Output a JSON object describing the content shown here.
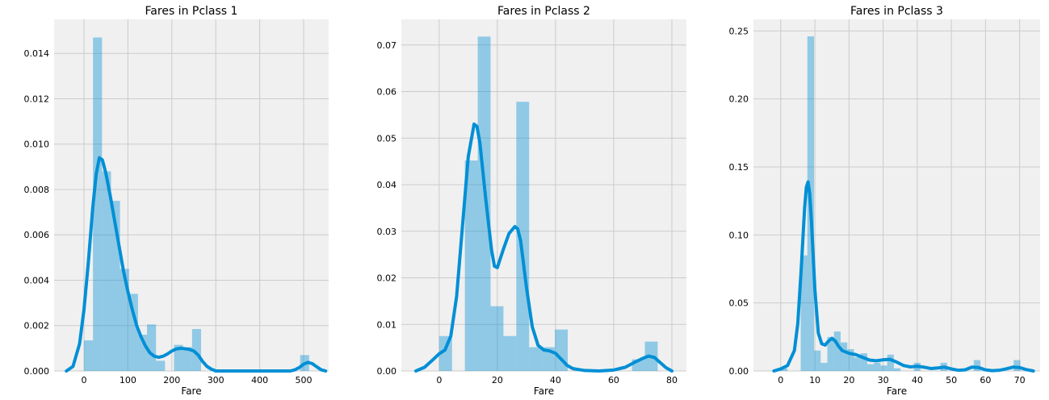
{
  "colors": {
    "background": "#f0f0f0",
    "grid": "#cbcbcb",
    "bar": "#008fd5",
    "bar_alpha": 0.4,
    "kde": "#008fd5"
  },
  "chart_data": [
    {
      "type": "histogram+kde",
      "title": "Fares in Pclass 1",
      "xlabel": "Fare",
      "ylabel": "",
      "xlim": [
        -68,
        557
      ],
      "ylim": [
        0,
        0.0155
      ],
      "xticks": [
        0,
        100,
        200,
        300,
        400,
        500
      ],
      "yticks": [
        0.0,
        0.002,
        0.004,
        0.006,
        0.008,
        0.01,
        0.012,
        0.014
      ],
      "ytick_labels": [
        "0.000",
        "0.002",
        "0.004",
        "0.006",
        "0.008",
        "0.010",
        "0.012",
        "0.014"
      ],
      "grid": true,
      "bins": [
        {
          "x0": 0,
          "x1": 20.5,
          "value": 0.00135
        },
        {
          "x0": 20.5,
          "x1": 41,
          "value": 0.0147
        },
        {
          "x0": 41,
          "x1": 61.5,
          "value": 0.0088
        },
        {
          "x0": 61.5,
          "x1": 82,
          "value": 0.0075
        },
        {
          "x0": 82,
          "x1": 102.5,
          "value": 0.0045
        },
        {
          "x0": 102.5,
          "x1": 123,
          "value": 0.0034
        },
        {
          "x0": 123,
          "x1": 143.5,
          "value": 0.0016
        },
        {
          "x0": 143.5,
          "x1": 164,
          "value": 0.00205
        },
        {
          "x0": 164,
          "x1": 184.5,
          "value": 0.00045
        },
        {
          "x0": 184.5,
          "x1": 205,
          "value": 0.0
        },
        {
          "x0": 205,
          "x1": 225.5,
          "value": 0.00115
        },
        {
          "x0": 225.5,
          "x1": 246,
          "value": 0.00105
        },
        {
          "x0": 246,
          "x1": 266.5,
          "value": 0.00185
        },
        {
          "x0": 492,
          "x1": 512.5,
          "value": 0.0007
        }
      ],
      "kde": [
        [
          -40,
          0.0
        ],
        [
          -25,
          0.0002
        ],
        [
          -10,
          0.0012
        ],
        [
          0,
          0.0027
        ],
        [
          10,
          0.0048
        ],
        [
          20,
          0.0072
        ],
        [
          28,
          0.0087
        ],
        [
          35,
          0.0094
        ],
        [
          42,
          0.0093
        ],
        [
          50,
          0.0087
        ],
        [
          60,
          0.0077
        ],
        [
          70,
          0.0066
        ],
        [
          80,
          0.0055
        ],
        [
          90,
          0.0044
        ],
        [
          100,
          0.0035
        ],
        [
          110,
          0.0027
        ],
        [
          120,
          0.002
        ],
        [
          130,
          0.0015
        ],
        [
          140,
          0.0011
        ],
        [
          150,
          0.0008
        ],
        [
          160,
          0.00065
        ],
        [
          170,
          0.0006
        ],
        [
          180,
          0.00065
        ],
        [
          190,
          0.00075
        ],
        [
          200,
          0.00088
        ],
        [
          210,
          0.00097
        ],
        [
          220,
          0.001
        ],
        [
          230,
          0.00098
        ],
        [
          240,
          0.00095
        ],
        [
          250,
          0.00088
        ],
        [
          260,
          0.0007
        ],
        [
          270,
          0.00042
        ],
        [
          280,
          0.0002
        ],
        [
          290,
          8e-05
        ],
        [
          300,
          0.0
        ],
        [
          470,
          0.0
        ],
        [
          480,
          5e-05
        ],
        [
          490,
          0.00015
        ],
        [
          500,
          0.0003
        ],
        [
          510,
          0.00038
        ],
        [
          520,
          0.00032
        ],
        [
          530,
          0.00018
        ],
        [
          540,
          5e-05
        ],
        [
          550,
          0.0
        ]
      ]
    },
    {
      "type": "histogram+kde",
      "title": "Fares in Pclass 2",
      "xlabel": "Fare",
      "ylabel": "",
      "xlim": [
        -13,
        85
      ],
      "ylim": [
        0,
        0.0755
      ],
      "xticks": [
        0,
        20,
        40,
        60,
        80
      ],
      "yticks": [
        0.0,
        0.01,
        0.02,
        0.03,
        0.04,
        0.05,
        0.06,
        0.07
      ],
      "ytick_labels": [
        "0.00",
        "0.01",
        "0.02",
        "0.03",
        "0.04",
        "0.05",
        "0.06",
        "0.07"
      ],
      "grid": true,
      "bins": [
        {
          "x0": 0,
          "x1": 4.42,
          "value": 0.0075
        },
        {
          "x0": 8.84,
          "x1": 13.26,
          "value": 0.0452
        },
        {
          "x0": 13.26,
          "x1": 17.68,
          "value": 0.0718
        },
        {
          "x0": 17.68,
          "x1": 22.1,
          "value": 0.0139
        },
        {
          "x0": 22.1,
          "x1": 26.52,
          "value": 0.0075
        },
        {
          "x0": 26.52,
          "x1": 30.94,
          "value": 0.0578
        },
        {
          "x0": 30.94,
          "x1": 35.36,
          "value": 0.0051
        },
        {
          "x0": 35.36,
          "x1": 39.78,
          "value": 0.0051
        },
        {
          "x0": 39.78,
          "x1": 44.2,
          "value": 0.0089
        },
        {
          "x0": 66.3,
          "x1": 70.72,
          "value": 0.0025
        },
        {
          "x0": 70.72,
          "x1": 75.14,
          "value": 0.0063
        }
      ],
      "kde": [
        [
          -8,
          0.0
        ],
        [
          -5,
          0.0008
        ],
        [
          -2,
          0.0025
        ],
        [
          0,
          0.0037
        ],
        [
          2,
          0.0045
        ],
        [
          4,
          0.0075
        ],
        [
          6,
          0.016
        ],
        [
          8,
          0.031
        ],
        [
          10,
          0.046
        ],
        [
          12,
          0.053
        ],
        [
          13,
          0.0525
        ],
        [
          14,
          0.049
        ],
        [
          16,
          0.037
        ],
        [
          18,
          0.026
        ],
        [
          19,
          0.0225
        ],
        [
          20,
          0.0222
        ],
        [
          22,
          0.026
        ],
        [
          24,
          0.0295
        ],
        [
          26,
          0.031
        ],
        [
          27,
          0.0305
        ],
        [
          28,
          0.028
        ],
        [
          30,
          0.018
        ],
        [
          32,
          0.0095
        ],
        [
          34,
          0.0055
        ],
        [
          36,
          0.0045
        ],
        [
          38,
          0.0043
        ],
        [
          40,
          0.0038
        ],
        [
          42,
          0.0025
        ],
        [
          44,
          0.0012
        ],
        [
          46,
          0.0005
        ],
        [
          50,
          0.0001
        ],
        [
          55,
          0.0
        ],
        [
          60,
          0.0002
        ],
        [
          64,
          0.0008
        ],
        [
          67,
          0.0018
        ],
        [
          70,
          0.0027
        ],
        [
          72,
          0.0032
        ],
        [
          74,
          0.0029
        ],
        [
          76,
          0.0018
        ],
        [
          78,
          0.0007
        ],
        [
          80,
          0.0
        ]
      ]
    },
    {
      "type": "histogram+kde",
      "title": "Fares in Pclass 3",
      "xlabel": "Fare",
      "ylabel": "",
      "xlim": [
        -8,
        76
      ],
      "ylim": [
        0,
        0.2585
      ],
      "xticks": [
        0,
        10,
        20,
        30,
        40,
        50,
        60,
        70
      ],
      "yticks": [
        0.0,
        0.05,
        0.1,
        0.15,
        0.2,
        0.25
      ],
      "ytick_labels": [
        "0.00",
        "0.05",
        "0.10",
        "0.15",
        "0.20",
        "0.25"
      ],
      "grid": true,
      "bins": [
        {
          "x0": 0,
          "x1": 1.95,
          "value": 0.002
        },
        {
          "x0": 5.85,
          "x1": 7.8,
          "value": 0.085
        },
        {
          "x0": 7.8,
          "x1": 9.75,
          "value": 0.246
        },
        {
          "x0": 9.75,
          "x1": 11.7,
          "value": 0.015
        },
        {
          "x0": 11.7,
          "x1": 13.65,
          "value": 0.006
        },
        {
          "x0": 13.65,
          "x1": 15.6,
          "value": 0.025
        },
        {
          "x0": 15.6,
          "x1": 17.55,
          "value": 0.029
        },
        {
          "x0": 17.55,
          "x1": 19.5,
          "value": 0.021
        },
        {
          "x0": 19.5,
          "x1": 21.45,
          "value": 0.016
        },
        {
          "x0": 21.45,
          "x1": 23.4,
          "value": 0.01
        },
        {
          "x0": 23.4,
          "x1": 25.35,
          "value": 0.013
        },
        {
          "x0": 25.35,
          "x1": 27.3,
          "value": 0.005
        },
        {
          "x0": 27.3,
          "x1": 29.25,
          "value": 0.006
        },
        {
          "x0": 29.25,
          "x1": 31.2,
          "value": 0.004
        },
        {
          "x0": 31.2,
          "x1": 33.15,
          "value": 0.012
        },
        {
          "x0": 33.15,
          "x1": 35.1,
          "value": 0.002
        },
        {
          "x0": 39.0,
          "x1": 40.95,
          "value": 0.006
        },
        {
          "x0": 46.8,
          "x1": 48.75,
          "value": 0.006
        },
        {
          "x0": 56.55,
          "x1": 58.5,
          "value": 0.008
        },
        {
          "x0": 68.25,
          "x1": 70.2,
          "value": 0.008
        }
      ],
      "kde": [
        [
          -2,
          0.0
        ],
        [
          0,
          0.0015
        ],
        [
          2,
          0.004
        ],
        [
          4,
          0.015
        ],
        [
          5,
          0.035
        ],
        [
          6,
          0.075
        ],
        [
          7,
          0.12
        ],
        [
          7.5,
          0.135
        ],
        [
          8,
          0.139
        ],
        [
          8.5,
          0.13
        ],
        [
          9,
          0.11
        ],
        [
          10,
          0.06
        ],
        [
          11,
          0.028
        ],
        [
          12,
          0.02
        ],
        [
          13,
          0.019
        ],
        [
          14,
          0.022
        ],
        [
          15,
          0.024
        ],
        [
          16,
          0.022
        ],
        [
          17,
          0.018
        ],
        [
          18,
          0.015
        ],
        [
          20,
          0.013
        ],
        [
          22,
          0.012
        ],
        [
          24,
          0.01
        ],
        [
          26,
          0.008
        ],
        [
          28,
          0.0075
        ],
        [
          30,
          0.0082
        ],
        [
          32,
          0.0085
        ],
        [
          34,
          0.0065
        ],
        [
          36,
          0.004
        ],
        [
          38,
          0.003
        ],
        [
          40,
          0.0035
        ],
        [
          42,
          0.0028
        ],
        [
          44,
          0.0018
        ],
        [
          46,
          0.0022
        ],
        [
          48,
          0.0028
        ],
        [
          50,
          0.0015
        ],
        [
          52,
          0.0005
        ],
        [
          54,
          0.0008
        ],
        [
          56,
          0.0028
        ],
        [
          58,
          0.0025
        ],
        [
          60,
          0.0008
        ],
        [
          62,
          0.0002
        ],
        [
          64,
          0.0005
        ],
        [
          66,
          0.0015
        ],
        [
          68,
          0.0028
        ],
        [
          70,
          0.0025
        ],
        [
          72,
          0.001
        ],
        [
          74,
          0.0
        ]
      ]
    }
  ]
}
